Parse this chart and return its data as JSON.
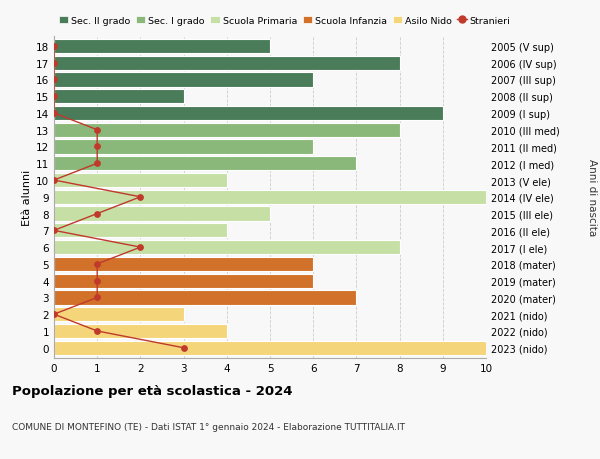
{
  "ages": [
    18,
    17,
    16,
    15,
    14,
    13,
    12,
    11,
    10,
    9,
    8,
    7,
    6,
    5,
    4,
    3,
    2,
    1,
    0
  ],
  "years": [
    "2005 (V sup)",
    "2006 (IV sup)",
    "2007 (III sup)",
    "2008 (II sup)",
    "2009 (I sup)",
    "2010 (III med)",
    "2011 (II med)",
    "2012 (I med)",
    "2013 (V ele)",
    "2014 (IV ele)",
    "2015 (III ele)",
    "2016 (II ele)",
    "2017 (I ele)",
    "2018 (mater)",
    "2019 (mater)",
    "2020 (mater)",
    "2021 (nido)",
    "2022 (nido)",
    "2023 (nido)"
  ],
  "bar_values": [
    5,
    8,
    6,
    3,
    9,
    8,
    6,
    7,
    4,
    10,
    5,
    4,
    8,
    6,
    6,
    7,
    3,
    4,
    10
  ],
  "bar_colors": [
    "#4a7c59",
    "#4a7c59",
    "#4a7c59",
    "#4a7c59",
    "#4a7c59",
    "#8ab87a",
    "#8ab87a",
    "#8ab87a",
    "#c5dfa5",
    "#c5dfa5",
    "#c5dfa5",
    "#c5dfa5",
    "#c5dfa5",
    "#d2722a",
    "#d2722a",
    "#d2722a",
    "#f5d57a",
    "#f5d57a",
    "#f5d57a"
  ],
  "stranieri_values": [
    0,
    0,
    0,
    0,
    0,
    1,
    1,
    1,
    0,
    2,
    1,
    0,
    2,
    1,
    1,
    1,
    0,
    1,
    3
  ],
  "stranieri_color": "#c0392b",
  "legend_labels": [
    "Sec. II grado",
    "Sec. I grado",
    "Scuola Primaria",
    "Scuola Infanzia",
    "Asilo Nido",
    "Stranieri"
  ],
  "legend_colors": [
    "#4a7c59",
    "#8ab87a",
    "#c5dfa5",
    "#d2722a",
    "#f5d57a",
    "#c0392b"
  ],
  "title": "Popolazione per età scolastica - 2024",
  "subtitle": "COMUNE DI MONTEFINO (TE) - Dati ISTAT 1° gennaio 2024 - Elaborazione TUTTITALIA.IT",
  "ylabel_left": "Età alunni",
  "ylabel_right": "Anni di nascita",
  "xlim": [
    0,
    10
  ],
  "bg_color": "#f8f8f8",
  "bar_edge_color": "#ffffff",
  "grid_color": "#cccccc"
}
